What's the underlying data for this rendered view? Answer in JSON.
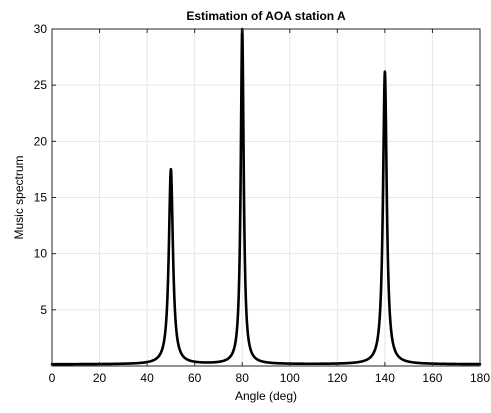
{
  "chart_data": {
    "type": "line",
    "title": "Estimation of AOA station A",
    "xlabel": "Angle (deg)",
    "ylabel": "Music spectrum",
    "xlim": [
      0,
      180
    ],
    "ylim": [
      0,
      30
    ],
    "xticks": [
      0,
      20,
      40,
      60,
      80,
      100,
      120,
      140,
      160,
      180
    ],
    "yticks": [
      5,
      10,
      15,
      20,
      25,
      30
    ],
    "grid": true,
    "legend": "none",
    "series": [
      {
        "color": "#000000",
        "line_width": "thick",
        "baseline": 0.15,
        "peaks": [
          {
            "x": 50,
            "y": 17.5,
            "half_width": 1.05
          },
          {
            "x": 80,
            "y": 30.0,
            "half_width": 0.75
          },
          {
            "x": 140,
            "y": 26.2,
            "half_width": 0.95
          }
        ]
      }
    ]
  }
}
